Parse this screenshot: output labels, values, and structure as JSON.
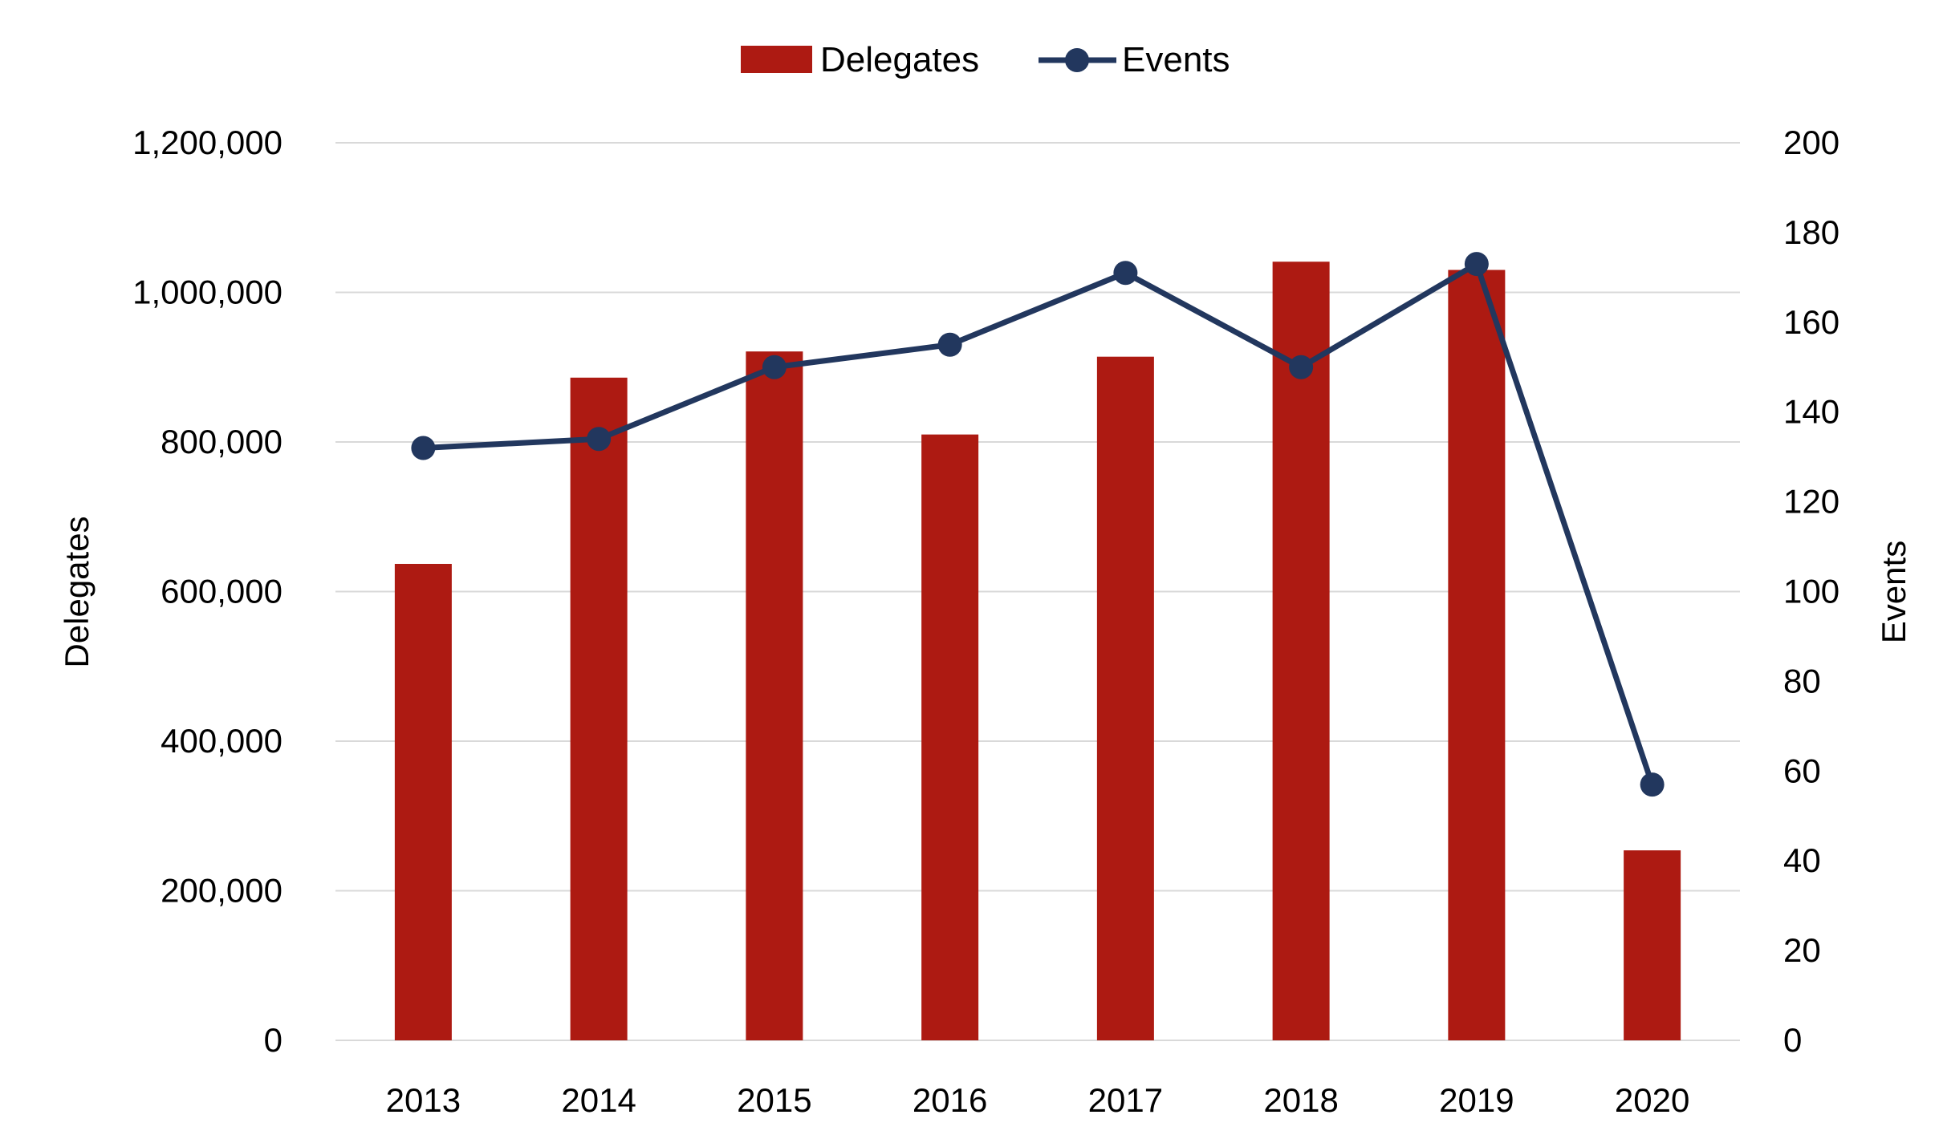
{
  "chart_data": {
    "type": "bar",
    "categories": [
      "2013",
      "2014",
      "2015",
      "2016",
      "2017",
      "2018",
      "2019",
      "2020"
    ],
    "series": [
      {
        "name": "Delegates",
        "type": "bar",
        "axis": "left",
        "color": "#AD1A12",
        "values": [
          637000,
          886000,
          921000,
          810000,
          914000,
          1041000,
          1030000,
          254000
        ]
      },
      {
        "name": "Events",
        "type": "line",
        "axis": "right",
        "color": "#22375E",
        "values": [
          132,
          134,
          150,
          155,
          171,
          150,
          173,
          57
        ]
      }
    ],
    "ylabel": "Delegates",
    "y2label": "Events",
    "ylim": [
      0,
      1200000
    ],
    "y2lim": [
      0,
      200
    ],
    "yticks": [
      "0",
      "200,000",
      "400,000",
      "600,000",
      "800,000",
      "1,000,000",
      "1,200,000"
    ],
    "y2ticks": [
      "0",
      "20",
      "40",
      "60",
      "80",
      "100",
      "120",
      "140",
      "160",
      "180",
      "200"
    ],
    "legend_position": "top-center",
    "grid": true,
    "colors": {
      "gridline": "#D9D9D9"
    }
  }
}
